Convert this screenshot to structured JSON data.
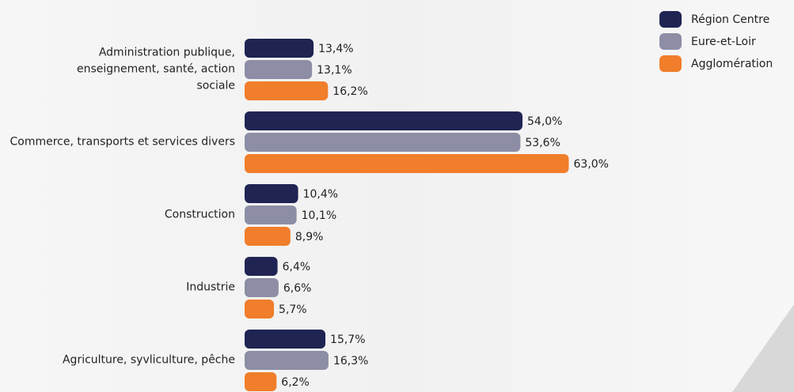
{
  "chart_data": {
    "type": "bar",
    "orientation": "horizontal",
    "legend": "top-right",
    "categories": [
      "Administration publique, enseignement, santé, action sociale",
      "Commerce, transports et services divers",
      "Construction",
      "Industrie",
      "Agriculture, syvliculture, pêche"
    ],
    "series": [
      {
        "name": "Région Centre",
        "color": "#1f2453",
        "values": [
          13.4,
          54.0,
          10.4,
          6.4,
          15.7
        ],
        "value_labels": [
          "13,4%",
          "54,0%",
          "10,4%",
          "6,4%",
          "15,7%"
        ]
      },
      {
        "name": "Eure-et-Loir",
        "color": "#8d8ea6",
        "values": [
          13.1,
          53.6,
          10.1,
          6.6,
          16.3
        ],
        "value_labels": [
          "13,1%",
          "53,6%",
          "10,1%",
          "6,6%",
          "16,3%"
        ]
      },
      {
        "name": "Agglomération",
        "color": "#f07e2b",
        "values": [
          16.2,
          63.0,
          8.9,
          5.7,
          6.2
        ],
        "value_labels": [
          "16,2%",
          "63,0%",
          "8,9%",
          "5,7%",
          "6,2%"
        ]
      }
    ]
  }
}
